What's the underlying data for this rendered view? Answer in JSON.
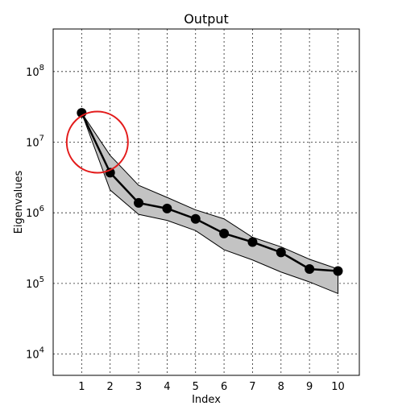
{
  "chart_data": {
    "type": "line",
    "title": "Output",
    "xlabel": "Index",
    "ylabel": "Eigenvalues",
    "x": [
      1,
      2,
      3,
      4,
      5,
      6,
      7,
      8,
      9,
      10
    ],
    "xlim": [
      0,
      10.75
    ],
    "yscale": "log",
    "ylim": [
      5000,
      400000000
    ],
    "y_ticks": [
      10000,
      100000,
      1000000,
      10000000,
      100000000
    ],
    "y_tick_labels": [
      {
        "base": "10",
        "exp": "4"
      },
      {
        "base": "10",
        "exp": "5"
      },
      {
        "base": "10",
        "exp": "6"
      },
      {
        "base": "10",
        "exp": "7"
      },
      {
        "base": "10",
        "exp": "8"
      }
    ],
    "x_tick_labels": [
      "1",
      "2",
      "3",
      "4",
      "5",
      "6",
      "7",
      "8",
      "9",
      "10"
    ],
    "grid": true,
    "series": [
      {
        "values": [
          26000000,
          3700000,
          1380000,
          1150000,
          820000,
          510000,
          385000,
          275000,
          160000,
          150000
        ],
        "color": "#000000",
        "marker": "circle"
      }
    ],
    "band": {
      "upper": [
        26000000,
        6500000,
        2450000,
        1650000,
        1100000,
        820000,
        450000,
        330000,
        220000,
        160000
      ],
      "lower": [
        26000000,
        2100000,
        950000,
        780000,
        560000,
        300000,
        215000,
        145000,
        105000,
        72000
      ],
      "color": "#c3c3c3"
    },
    "annotations": [
      {
        "type": "circle",
        "x": 1.55,
        "y": 10000000,
        "color": "#e31b1b"
      }
    ]
  }
}
